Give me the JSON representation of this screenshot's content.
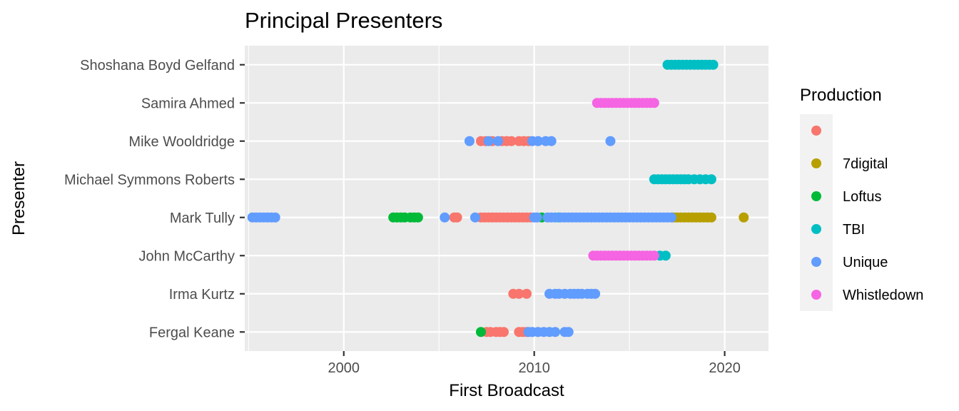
{
  "chart_data": {
    "type": "scatter",
    "title": "Principal Presenters",
    "xlabel": "First Broadcast",
    "ylabel": "Presenter",
    "xlim": [
      1994.8,
      2022.3
    ],
    "x_ticks": [
      2000,
      2010,
      2020
    ],
    "grid": true,
    "legend_position": "right",
    "legend_title": "Production",
    "categories": [
      "Fergal Keane",
      "Irma Kurtz",
      "John McCarthy",
      "Mark Tully",
      "Michael Symmons Roberts",
      "Mike Wooldridge",
      "Samira Ahmed",
      "Shoshana Boyd Gelfand"
    ],
    "series": [
      {
        "name": "",
        "color": "#F8766D",
        "points": [
          {
            "presenter": "Fergal Keane",
            "x": [
              2007.5,
              2007.7,
              2008.0,
              2008.2,
              2008.4,
              2009.2,
              2009.4,
              2009.6
            ]
          },
          {
            "presenter": "Irma Kurtz",
            "x": [
              2008.9,
              2009.2,
              2009.6
            ]
          },
          {
            "presenter": "Mark Tully",
            "x": [
              2005.8,
              2005.95,
              2007.2,
              2007.4,
              2007.6,
              2007.8,
              2008.0,
              2008.2,
              2008.4,
              2008.6,
              2008.8,
              2009.0,
              2009.2,
              2009.4,
              2009.6,
              2009.8
            ]
          },
          {
            "presenter": "Mike Wooldridge",
            "x": [
              2007.2,
              2007.45,
              2007.8,
              2008.3,
              2008.55,
              2008.8,
              2009.2,
              2009.45,
              2009.7
            ]
          }
        ]
      },
      {
        "name": "7digital",
        "color": "#B79F00",
        "points": [
          {
            "presenter": "Mark Tully",
            "x": [
              2017.3,
              2017.5,
              2017.7,
              2017.9,
              2018.1,
              2018.3,
              2018.5,
              2018.7,
              2018.9,
              2019.1,
              2019.3,
              2021.0
            ]
          }
        ]
      },
      {
        "name": "Loftus",
        "color": "#00BA38",
        "points": [
          {
            "presenter": "Fergal Keane",
            "x": [
              2007.2
            ]
          },
          {
            "presenter": "Mark Tully",
            "x": [
              2002.6,
              2002.8,
              2003.0,
              2003.2,
              2003.5,
              2003.7,
              2003.9,
              2010.4
            ]
          }
        ]
      },
      {
        "name": "TBI",
        "color": "#00BFC4",
        "points": [
          {
            "presenter": "John McCarthy",
            "x": [
              2016.6,
              2016.9
            ]
          },
          {
            "presenter": "Mark Tully",
            "x": [
              2011.3
            ]
          },
          {
            "presenter": "Michael Symmons Roberts",
            "x": [
              2016.3,
              2016.5,
              2016.7,
              2016.9,
              2017.1,
              2017.3,
              2017.5,
              2017.7,
              2017.9,
              2018.1,
              2018.4,
              2018.7,
              2019.0,
              2019.3
            ]
          },
          {
            "presenter": "Shoshana Boyd Gelfand",
            "x": [
              2017.0,
              2017.2,
              2017.4,
              2017.6,
              2017.8,
              2018.0,
              2018.2,
              2018.4,
              2018.6,
              2018.8,
              2019.0,
              2019.2,
              2019.4
            ]
          }
        ]
      },
      {
        "name": "Unique",
        "color": "#619CFF",
        "points": [
          {
            "presenter": "Fergal Keane",
            "x": [
              2009.7,
              2009.9,
              2010.2,
              2010.5,
              2010.8,
              2011.1,
              2011.6,
              2011.8
            ]
          },
          {
            "presenter": "Irma Kurtz",
            "x": [
              2010.8,
              2011.1,
              2011.3,
              2011.6,
              2011.9,
              2012.1,
              2012.3,
              2012.5,
              2012.8,
              2013.0,
              2013.2
            ]
          },
          {
            "presenter": "Mark Tully",
            "x": [
              1995.2,
              1995.4,
              1995.6,
              1995.8,
              1996.0,
              1996.2,
              1996.4,
              2005.3,
              2006.9,
              2010.0,
              2010.15,
              2010.7,
              2010.9,
              2011.1,
              2011.4,
              2011.6,
              2011.8,
              2012.0,
              2012.2,
              2012.4,
              2012.6,
              2012.8,
              2013.0,
              2013.2,
              2013.4,
              2013.6,
              2013.8,
              2014.0,
              2014.2,
              2014.4,
              2014.6,
              2014.8,
              2015.0,
              2015.2,
              2015.4,
              2015.6,
              2015.8,
              2016.0,
              2016.2,
              2016.4,
              2016.6,
              2016.8,
              2017.0,
              2017.2
            ]
          },
          {
            "presenter": "Mike Wooldridge",
            "x": [
              2006.6,
              2007.6,
              2008.1,
              2009.9,
              2010.2,
              2010.6,
              2010.9,
              2014.0
            ]
          }
        ]
      },
      {
        "name": "Whistledown",
        "color": "#F564E3",
        "points": [
          {
            "presenter": "John McCarthy",
            "x": [
              2013.1,
              2013.3,
              2013.5,
              2013.7,
              2013.9,
              2014.1,
              2014.3,
              2014.5,
              2014.7,
              2014.9,
              2015.1,
              2015.3,
              2015.5,
              2015.7,
              2015.9,
              2016.1,
              2016.3
            ]
          },
          {
            "presenter": "Samira Ahmed",
            "x": [
              2013.3,
              2013.5,
              2013.7,
              2013.9,
              2014.1,
              2014.3,
              2014.5,
              2014.7,
              2014.9,
              2015.1,
              2015.3,
              2015.5,
              2015.7,
              2015.9,
              2016.1,
              2016.3
            ]
          }
        ]
      }
    ]
  }
}
